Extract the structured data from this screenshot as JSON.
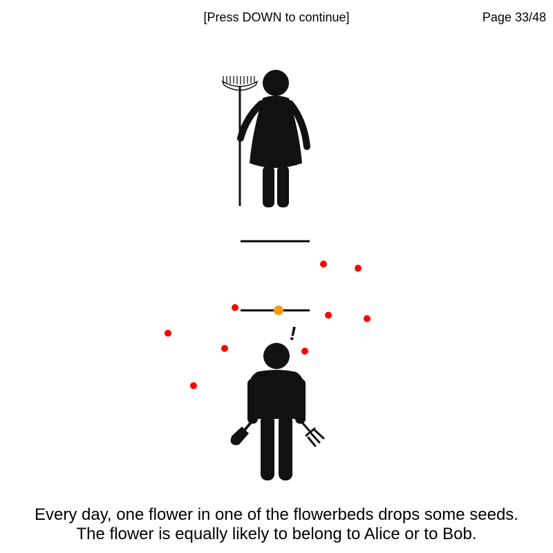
{
  "header": {
    "hint": "[Press DOWN to continue]",
    "page": "Page 33/48"
  },
  "caption": {
    "line1": "Every day, one flower in one of the flowerbeds drops some seeds.",
    "line2": "The flower is equally likely to belong to Alice or to Bob."
  },
  "characters": {
    "alice": {
      "icon": "woman-with-rake-icon"
    },
    "bob": {
      "icon": "man-with-garden-tools-icon",
      "alert_mark": "!"
    }
  },
  "colors": {
    "figure": "#111111",
    "seed": "#ff0000",
    "highlighted_seed": "#f39c12"
  }
}
